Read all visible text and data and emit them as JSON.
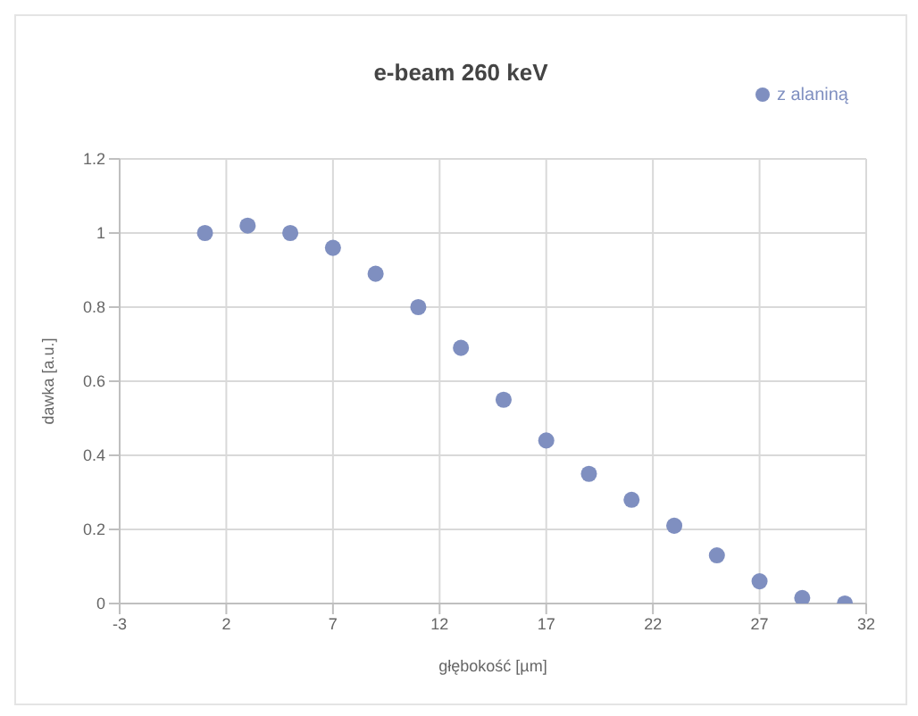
{
  "chart_data": {
    "type": "scatter",
    "title": "e-beam 260 keV",
    "xlabel": "głębokość [µm]",
    "ylabel": "dawka [a.u.]",
    "x": [
      1,
      3,
      5,
      7,
      9,
      11,
      13,
      15,
      17,
      19,
      21,
      23,
      25,
      27,
      29,
      31
    ],
    "series": [
      {
        "name": "z alaniną",
        "color": "#7f8fc0",
        "values": [
          1.0,
          1.02,
          1.0,
          0.96,
          0.89,
          0.8,
          0.69,
          0.55,
          0.44,
          0.35,
          0.28,
          0.21,
          0.13,
          0.06,
          0.015,
          0.0
        ]
      }
    ],
    "xlim": [
      -3,
      32
    ],
    "xticks": [
      -3,
      2,
      7,
      12,
      17,
      22,
      27,
      32
    ],
    "ylim": [
      0,
      1.2
    ],
    "yticks": [
      0,
      0.2,
      0.4,
      0.6,
      0.8,
      1,
      1.2
    ],
    "grid": true,
    "legend": "top right",
    "marker": "circle"
  }
}
